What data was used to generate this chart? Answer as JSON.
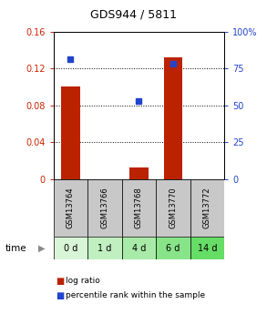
{
  "title": "GDS944 / 5811",
  "samples": [
    "GSM13764",
    "GSM13766",
    "GSM13768",
    "GSM13770",
    "GSM13772"
  ],
  "time_labels": [
    "0 d",
    "1 d",
    "4 d",
    "6 d",
    "14 d"
  ],
  "log_ratio": [
    0.1,
    0.0,
    0.012,
    0.132,
    0.0
  ],
  "percentile_rank": [
    81.0,
    null,
    53.0,
    78.0,
    null
  ],
  "ylim_left": [
    0,
    0.16
  ],
  "ylim_right": [
    0,
    100
  ],
  "yticks_left": [
    0,
    0.04,
    0.08,
    0.12,
    0.16
  ],
  "yticks_right": [
    0,
    25,
    50,
    75,
    100
  ],
  "ytick_labels_left": [
    "0",
    "0.04",
    "0.08",
    "0.12",
    "0.16"
  ],
  "ytick_labels_right": [
    "0",
    "25",
    "50",
    "75",
    "100%"
  ],
  "bar_color": "#bb2200",
  "dot_color": "#2244cc",
  "bar_width": 0.55,
  "bg_plot": "#ffffff",
  "bg_figure": "#ffffff",
  "sample_bg": "#c8c8c8",
  "time_bg_0": "#d8f5d8",
  "time_bg_1": "#c0f0c0",
  "time_bg_2": "#a8eba8",
  "time_bg_3": "#88e488",
  "time_bg_4": "#66dd66",
  "legend_bar_label": "log ratio",
  "legend_dot_label": "percentile rank within the sample",
  "time_arrow_label": "time",
  "left_axis_color": "#cc2200",
  "right_axis_color": "#2244cc",
  "title_color": "#000000",
  "figsize": [
    2.93,
    3.45
  ],
  "dpi": 100
}
